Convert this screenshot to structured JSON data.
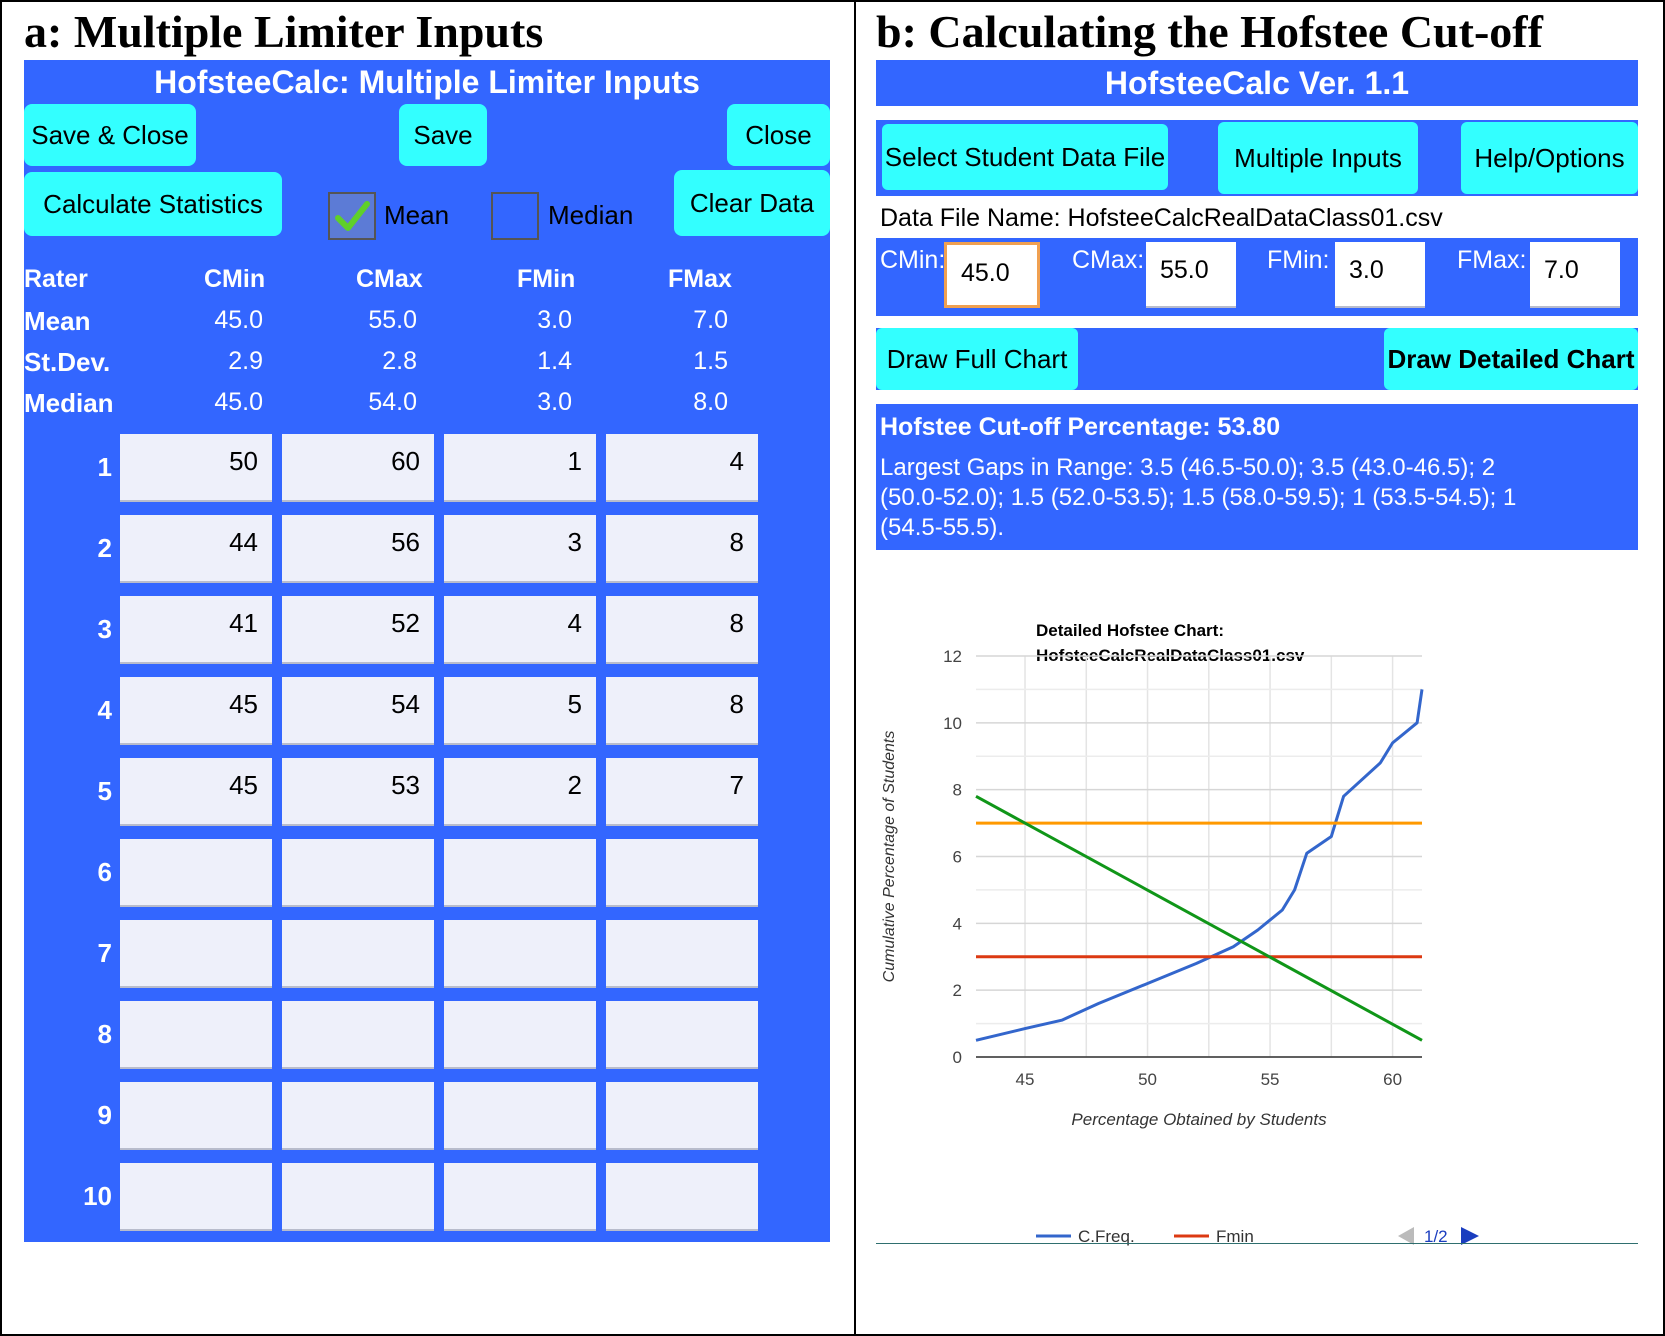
{
  "panel_a": {
    "heading": "a: Multiple Limiter Inputs",
    "title": "HofsteeCalc: Multiple Limiter Inputs",
    "buttons": {
      "save_close": "Save & Close",
      "save": "Save",
      "close": "Close",
      "calculate": "Calculate Statistics",
      "clear": "Clear Data"
    },
    "options": {
      "mean_label": "Mean",
      "mean_checked": true,
      "median_label": "Median",
      "median_checked": false
    },
    "stats": {
      "headers": [
        "Rater",
        "CMin",
        "CMax",
        "FMin",
        "FMax"
      ],
      "rows": [
        {
          "label": "Mean",
          "values": [
            "45.0",
            "55.0",
            "3.0",
            "7.0"
          ]
        },
        {
          "label": "St.Dev.",
          "values": [
            "2.9",
            "2.8",
            "1.4",
            "1.5"
          ]
        },
        {
          "label": "Median",
          "values": [
            "45.0",
            "54.0",
            "3.0",
            "8.0"
          ]
        }
      ]
    },
    "raters": [
      {
        "num": "1",
        "values": [
          "50",
          "60",
          "1",
          "4"
        ]
      },
      {
        "num": "2",
        "values": [
          "44",
          "56",
          "3",
          "8"
        ]
      },
      {
        "num": "3",
        "values": [
          "41",
          "52",
          "4",
          "8"
        ]
      },
      {
        "num": "4",
        "values": [
          "45",
          "54",
          "5",
          "8"
        ]
      },
      {
        "num": "5",
        "values": [
          "45",
          "53",
          "2",
          "7"
        ]
      },
      {
        "num": "6",
        "values": [
          "",
          "",
          "",
          ""
        ]
      },
      {
        "num": "7",
        "values": [
          "",
          "",
          "",
          ""
        ]
      },
      {
        "num": "8",
        "values": [
          "",
          "",
          "",
          ""
        ]
      },
      {
        "num": "9",
        "values": [
          "",
          "",
          "",
          ""
        ]
      },
      {
        "num": "10",
        "values": [
          "",
          "",
          "",
          ""
        ]
      }
    ]
  },
  "panel_b": {
    "heading": "b: Calculating the Hofstee Cut-off",
    "title": "HofsteeCalc Ver. 1.1",
    "buttons": {
      "select_file": "Select Student Data File",
      "multiple_inputs": "Multiple Inputs",
      "help": "Help/Options",
      "draw_full": "Draw Full Chart",
      "draw_detailed": "Draw Detailed Chart"
    },
    "file_name": "Data File Name: HofsteeCalcRealDataClass01.csv",
    "fields": {
      "cmin_label": "CMin:",
      "cmin_value": "45.0",
      "cmax_label": "CMax:",
      "cmax_value": "55.0",
      "fmin_label": "FMin:",
      "fmin_value": "3.0",
      "fmax_label": "FMax:",
      "fmax_value": "7.0"
    },
    "result": "Hofstee Cut-off Percentage: 53.80",
    "gaps_line1": "Largest Gaps in Range: 3.5 (46.5-50.0); 3.5 (43.0-46.5); 2",
    "gaps_line2": "(50.0-52.0); 1.5 (52.0-53.5); 1.5 (58.0-59.5); 1 (53.5-54.5); 1",
    "gaps_line3": "(54.5-55.5).",
    "pager": "1/2"
  },
  "chart_data": {
    "type": "line",
    "title_line1": "Detailed Hofstee Chart:",
    "title_line2": "HofsteeCalcRealDataClass01.csv",
    "xlabel": "Percentage Obtained by Students",
    "ylabel": "Cumulative Percentage of Students",
    "xlim": [
      43,
      61.2
    ],
    "ylim": [
      0,
      12
    ],
    "xticks": [
      45,
      50,
      55,
      60
    ],
    "yticks": [
      0,
      2,
      4,
      6,
      8,
      10,
      12
    ],
    "grid": true,
    "legend_position": "bottom",
    "series": [
      {
        "name": "C.Freq.",
        "color": "#3366cc",
        "x": [
          43,
          45,
          46.5,
          48,
          50,
          52,
          53.5,
          54.5,
          55.5,
          56,
          56.5,
          57.5,
          58,
          59.5,
          60,
          61,
          61.2
        ],
        "y": [
          0.5,
          0.85,
          1.1,
          1.6,
          2.2,
          2.8,
          3.3,
          3.8,
          4.4,
          5.0,
          6.1,
          6.6,
          7.8,
          8.8,
          9.4,
          10.0,
          11.0
        ]
      },
      {
        "name": "Fmin",
        "color": "#dc3912",
        "x": [
          43,
          61.2
        ],
        "y": [
          3,
          3
        ]
      },
      {
        "color": "#ff9900",
        "x": [
          43,
          61.2
        ],
        "y": [
          7,
          7
        ]
      },
      {
        "color": "#109618",
        "x": [
          43,
          61.2
        ],
        "y": [
          7.8,
          0.5
        ]
      }
    ]
  }
}
